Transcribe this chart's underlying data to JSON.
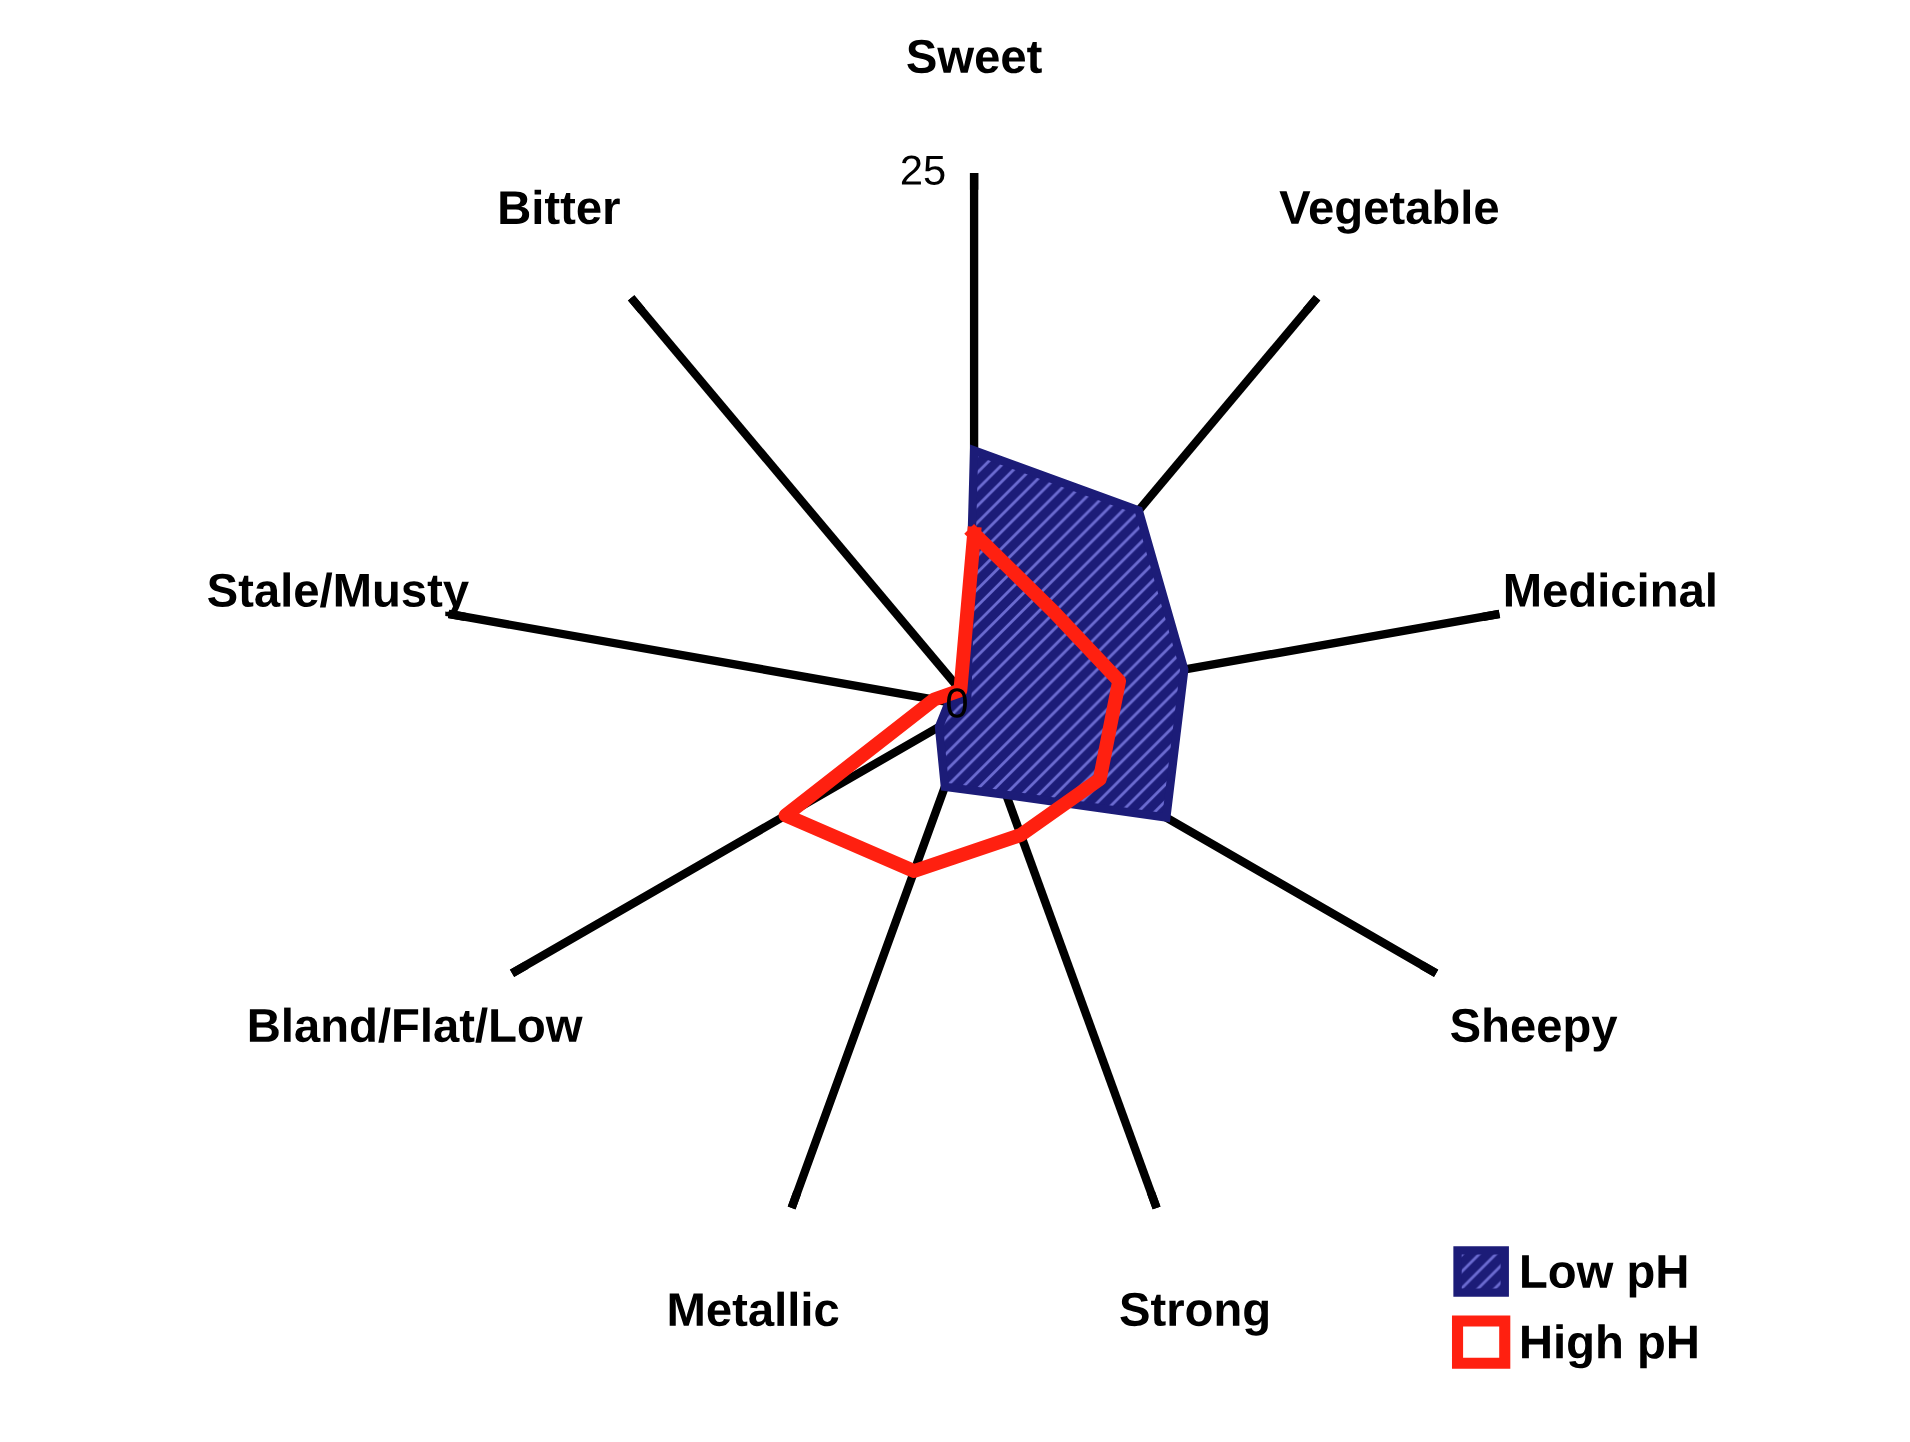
{
  "chart_data": {
    "type": "radar",
    "categories": [
      "Sweet",
      "Vegetable",
      "Medicinal",
      "Sheepy",
      "Strong",
      "Metallic",
      "Bland/Flat/Low",
      "Stale/Musty",
      "Bitter"
    ],
    "ylim": [
      0,
      25
    ],
    "yticks": [
      0,
      25
    ],
    "grid": "x",
    "legend": "bottom right",
    "series": [
      {
        "name": "Low pH",
        "color": "#1c1c78",
        "type": "area",
        "values": [
          12,
          12,
          10,
          10.4,
          4.4,
          4,
          1.9,
          1.2,
          0.5
        ]
      },
      {
        "name": "High pH",
        "color": "#ff2010",
        "values": [
          8.1,
          5.8,
          6.9,
          6.8,
          6.4,
          8.2,
          10.2,
          1.9,
          1
        ]
      }
    ]
  }
}
